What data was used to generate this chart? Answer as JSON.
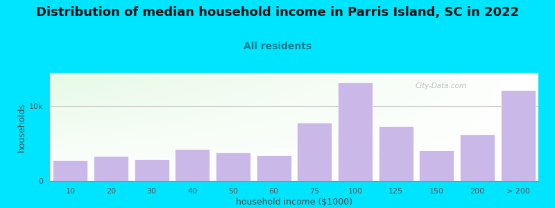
{
  "title": "Distribution of median household income in Parris Island, SC in 2022",
  "subtitle": "All residents",
  "xlabel": "household income ($1000)",
  "ylabel": "households",
  "bar_color": "#c9b8e8",
  "bar_edgecolor": "#ffffff",
  "background_outer": "#00e5ff",
  "ytick_label": "10k",
  "ytick_value": 10000,
  "ylim": [
    0,
    14500
  ],
  "categories": [
    "10",
    "20",
    "30",
    "40",
    "50",
    "60",
    "75",
    "100",
    "125",
    "150",
    "200",
    "> 200"
  ],
  "values": [
    2800,
    3300,
    2900,
    4300,
    3800,
    3400,
    7800,
    13200,
    7300,
    4100,
    6200,
    12200
  ],
  "watermark": "City-Data.com",
  "title_fontsize": 13,
  "subtitle_fontsize": 10,
  "axis_label_fontsize": 9,
  "tick_fontsize": 8
}
